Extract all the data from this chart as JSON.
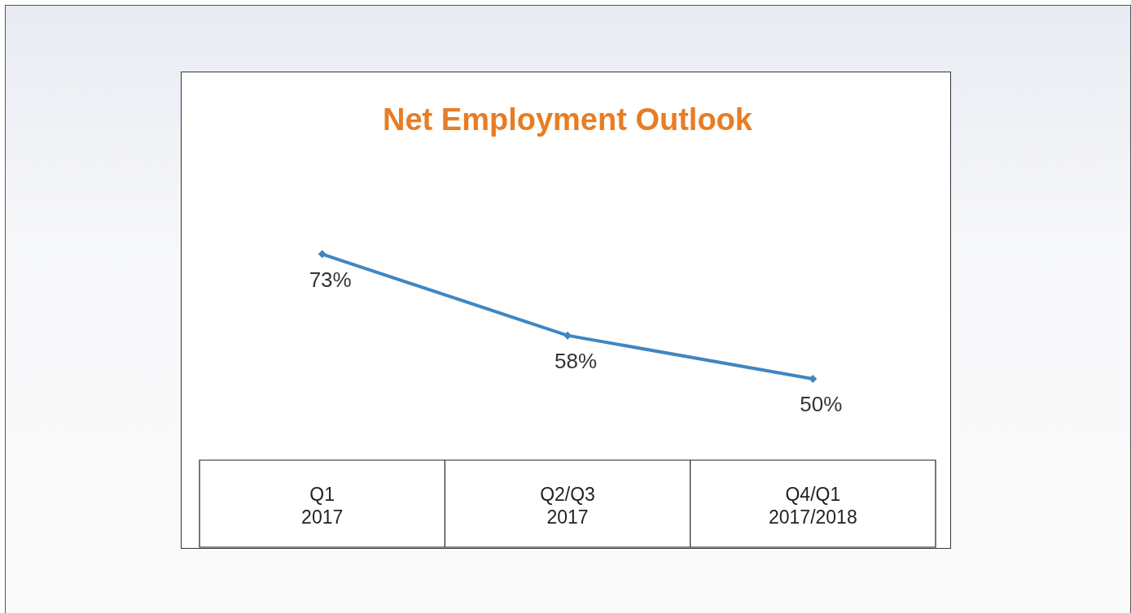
{
  "chart_data": {
    "type": "line",
    "title": "Net Employment Outlook",
    "categories": [
      "Q1\n2017",
      "Q2/Q3\n2017",
      "Q4/Q1\n2017/2018"
    ],
    "series": [
      {
        "color": "#3f86c1",
        "values": [
          73,
          58,
          50
        ],
        "value_labels": [
          "73%",
          "58%",
          "50%"
        ]
      }
    ],
    "tick_labels": "x",
    "marker": "diamond",
    "line_style": "solid",
    "grid": false,
    "legend": false
  }
}
